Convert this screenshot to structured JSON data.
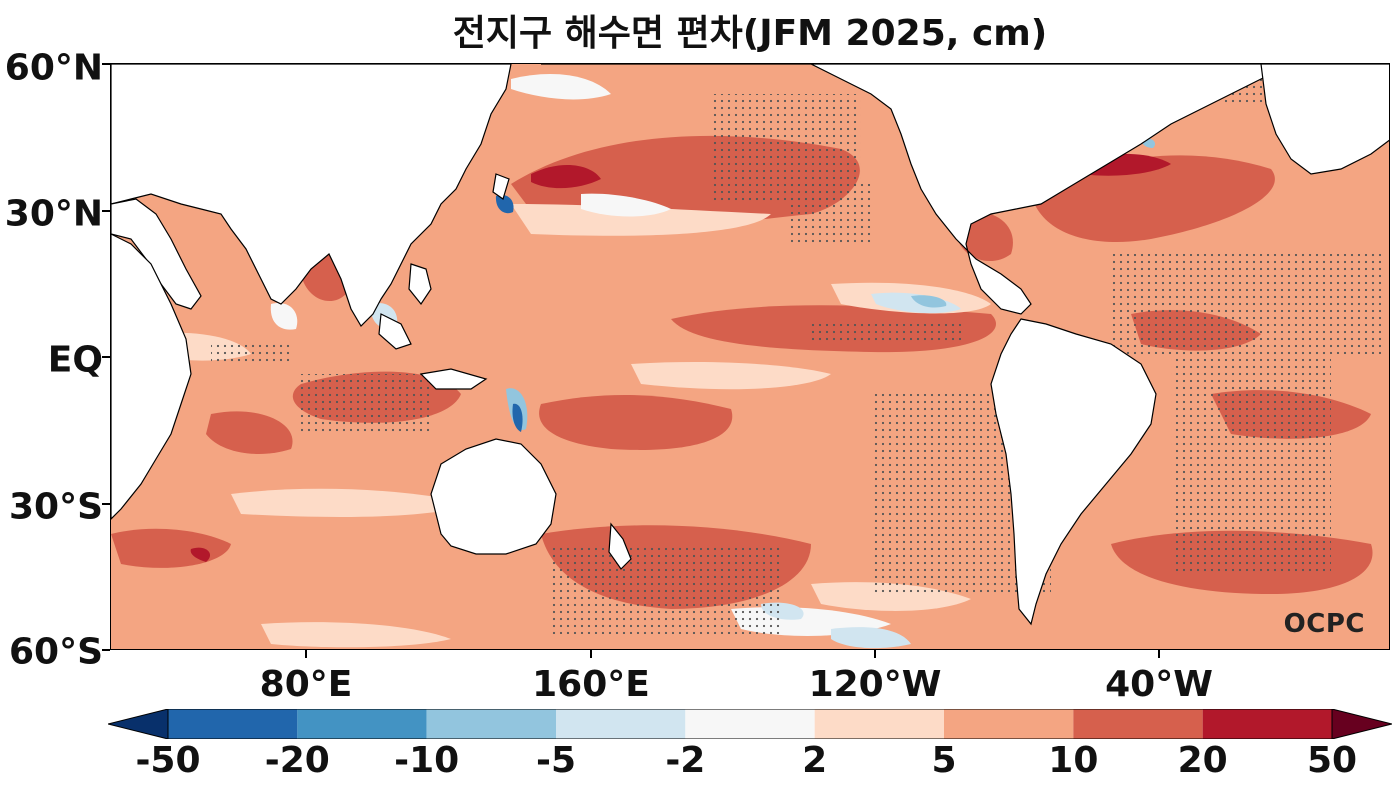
{
  "title": "전지구 해수면 편차(JFM 2025, cm)",
  "watermark": "OCPC",
  "lat_labels": [
    "60°N",
    "30°N",
    "EQ",
    "30°S",
    "60°S"
  ],
  "lon_labels": [
    "80°E",
    "160°E",
    "120°W",
    "40°W"
  ],
  "colorbar": {
    "levels": [
      "-50",
      "-20",
      "-10",
      "-5",
      "-2",
      "2",
      "5",
      "10",
      "20",
      "50"
    ],
    "colors": [
      "#08306b",
      "#2166ac",
      "#4393c3",
      "#92c5de",
      "#d1e5f0",
      "#f7f7f7",
      "#fddbc7",
      "#f4a582",
      "#d6604d",
      "#b2182b",
      "#67001f"
    ]
  },
  "map_colors": {
    "ocean_base": "#f4a582",
    "strong_pos": "#d6604d",
    "very_strong_pos": "#b2182b",
    "weak_pos": "#fddbc7",
    "neutral": "#f7f7f7",
    "weak_neg": "#d1e5f0",
    "mod_neg": "#92c5de",
    "strong_neg": "#2166ac",
    "land": "#ffffff"
  }
}
